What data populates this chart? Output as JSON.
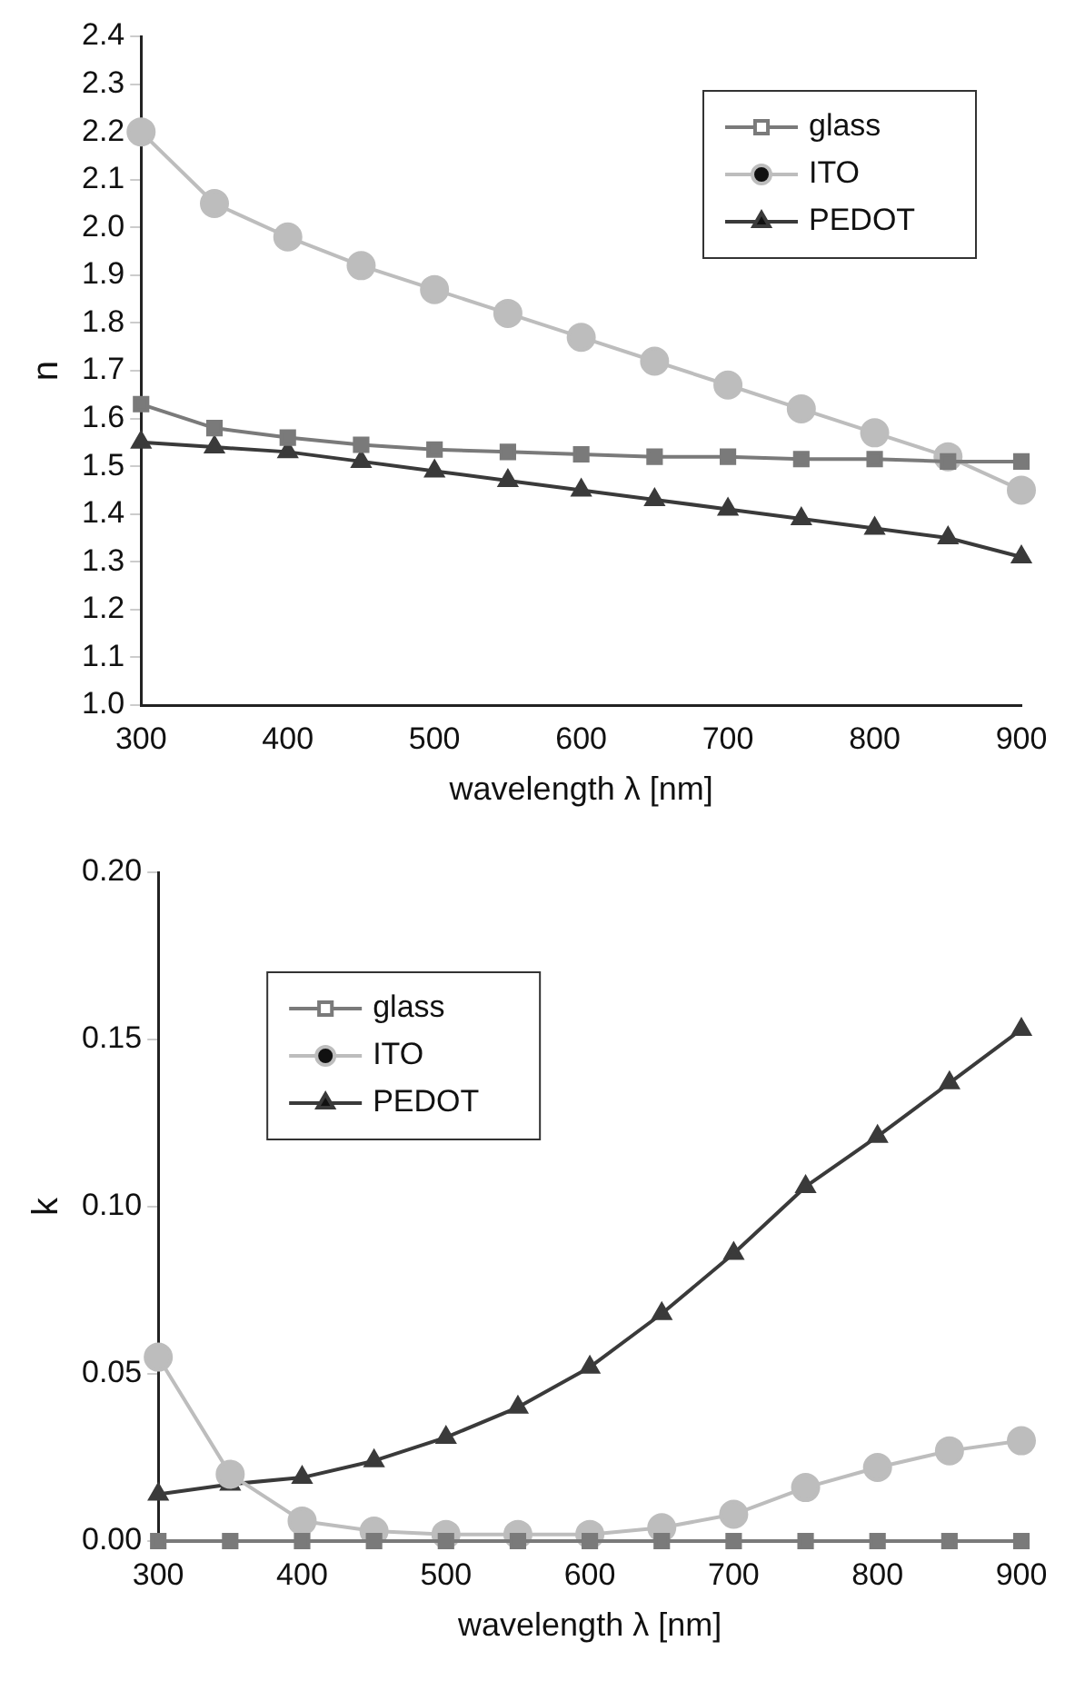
{
  "chart_data": [
    {
      "type": "line",
      "xlabel": "wavelength λ [nm]",
      "ylabel": "n",
      "x": [
        300,
        350,
        400,
        450,
        500,
        550,
        600,
        650,
        700,
        750,
        800,
        850,
        900
      ],
      "xlim": [
        300,
        900
      ],
      "xticks": [
        300,
        400,
        500,
        600,
        700,
        800,
        900
      ],
      "ylim": [
        1.0,
        2.4
      ],
      "yticks": [
        {
          "value": 1.0,
          "label": "1.0"
        },
        1.1,
        1.2,
        1.3,
        1.4,
        1.5,
        1.6,
        1.7,
        1.8,
        1.9,
        {
          "value": 2.0,
          "label": "2.0"
        },
        2.1,
        2.2,
        2.3,
        2.4
      ],
      "legend": "top right",
      "grid": false,
      "series": [
        {
          "name": "glass",
          "color": "#7a7a7a",
          "marker": "square",
          "values": [
            1.63,
            1.58,
            1.56,
            1.545,
            1.535,
            1.53,
            1.525,
            1.52,
            1.52,
            1.515,
            1.515,
            1.51,
            1.51
          ]
        },
        {
          "name": "ITO",
          "color": "#bdbdbd",
          "marker": "circle",
          "values": [
            2.2,
            2.05,
            1.98,
            1.92,
            1.87,
            1.82,
            1.77,
            1.72,
            1.67,
            1.62,
            1.57,
            1.52,
            1.45
          ]
        },
        {
          "name": "PEDOT",
          "color": "#3a3a3a",
          "marker": "triangle",
          "values": [
            1.55,
            1.54,
            1.53,
            1.51,
            1.49,
            1.47,
            1.45,
            1.43,
            1.41,
            1.39,
            1.37,
            1.35,
            1.31
          ]
        }
      ]
    },
    {
      "type": "line",
      "xlabel": "wavelength λ [nm]",
      "ylabel": "k",
      "x": [
        300,
        350,
        400,
        450,
        500,
        550,
        600,
        650,
        700,
        750,
        800,
        850,
        900
      ],
      "xlim": [
        300,
        900
      ],
      "xticks": [
        300,
        400,
        500,
        600,
        700,
        800,
        900
      ],
      "ylim": [
        0,
        0.2
      ],
      "yticks": [
        {
          "value": 0,
          "label": "0.00"
        },
        {
          "value": 0.05,
          "label": "0.05"
        },
        {
          "value": 0.1,
          "label": "0.10"
        },
        {
          "value": 0.15,
          "label": "0.15"
        },
        {
          "value": 0.2,
          "label": "0.20"
        }
      ],
      "legend": "top left",
      "grid": false,
      "series": [
        {
          "name": "glass",
          "color": "#7a7a7a",
          "marker": "square",
          "values": [
            0,
            0,
            0,
            0,
            0,
            0,
            0,
            0,
            0,
            0,
            0,
            0,
            0
          ]
        },
        {
          "name": "ITO",
          "color": "#bdbdbd",
          "marker": "circle",
          "values": [
            0.055,
            0.02,
            0.006,
            0.003,
            0.002,
            0.002,
            0.002,
            0.004,
            0.008,
            0.016,
            0.022,
            0.027,
            0.03
          ]
        },
        {
          "name": "PEDOT",
          "color": "#3a3a3a",
          "marker": "triangle",
          "values": [
            0.014,
            0.017,
            0.019,
            0.024,
            0.031,
            0.04,
            0.052,
            0.068,
            0.086,
            0.106,
            0.121,
            0.137,
            0.153
          ]
        }
      ]
    }
  ]
}
